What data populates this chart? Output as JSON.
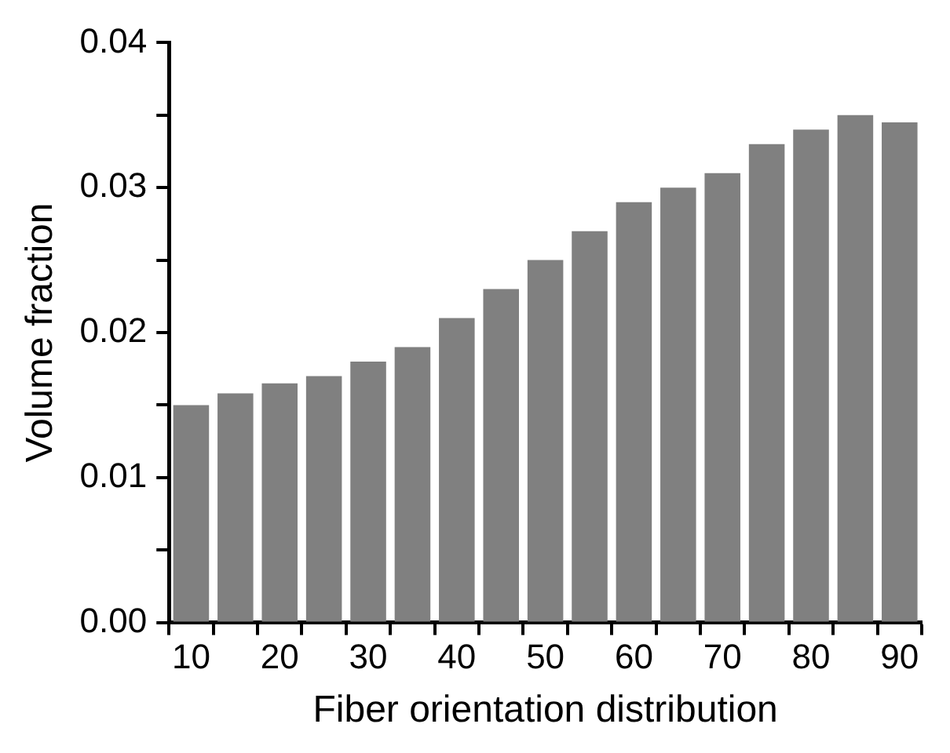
{
  "chart_data": {
    "type": "bar",
    "xlabel": "Fiber orientation distribution",
    "ylabel": "Volume fraction",
    "categories": [
      "10",
      null,
      "20",
      null,
      "30",
      null,
      "40",
      null,
      "50",
      null,
      "60",
      null,
      "70",
      null,
      "80",
      null,
      "90"
    ],
    "values": [
      0.015,
      0.0158,
      0.0165,
      0.017,
      0.018,
      0.019,
      0.021,
      0.023,
      0.025,
      0.027,
      0.029,
      0.03,
      0.031,
      0.033,
      0.034,
      0.035,
      0.0345
    ],
    "color": "#808080",
    "ylim": [
      0,
      0.04
    ],
    "yticks": [
      {
        "value": 0,
        "label": "0.00"
      },
      {
        "value": 0.005,
        "label": null
      },
      {
        "value": 0.01,
        "label": "0.01"
      },
      {
        "value": 0.015,
        "label": null
      },
      {
        "value": 0.02,
        "label": "0.02"
      },
      {
        "value": 0.025,
        "label": null
      },
      {
        "value": 0.03,
        "label": "0.03"
      },
      {
        "value": 0.035,
        "label": null
      },
      {
        "value": 0.04,
        "label": "0.04"
      }
    ],
    "grid": false,
    "legend": false
  }
}
